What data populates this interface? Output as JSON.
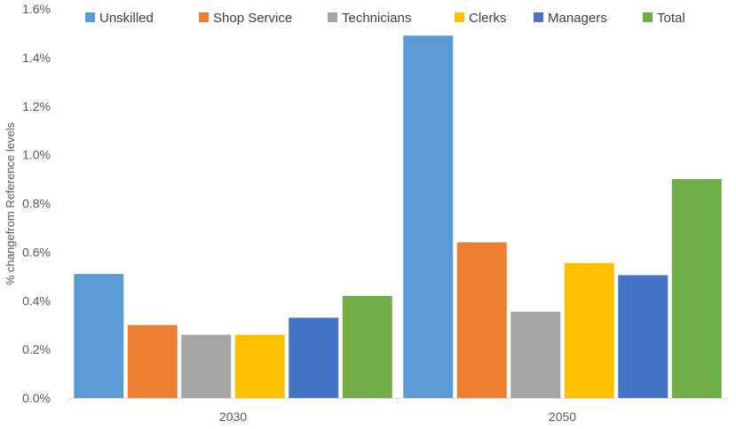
{
  "chart_data": {
    "type": "bar",
    "categories": [
      "2030",
      "2050"
    ],
    "series": [
      {
        "name": "Unskilled",
        "color": "#5B9BD5",
        "values": [
          0.51,
          1.49
        ]
      },
      {
        "name": "Shop Service",
        "color": "#ED7D31",
        "values": [
          0.3,
          0.64
        ]
      },
      {
        "name": "Technicians",
        "color": "#A5A5A5",
        "values": [
          0.26,
          0.355
        ]
      },
      {
        "name": "Clerks",
        "color": "#FFC000",
        "values": [
          0.26,
          0.555
        ]
      },
      {
        "name": "Managers",
        "color": "#4472C4",
        "values": [
          0.33,
          0.505
        ]
      },
      {
        "name": "Total",
        "color": "#70AD47",
        "values": [
          0.42,
          0.9
        ]
      }
    ],
    "ylabel": "% changefrom Reference levels",
    "xlabel": "",
    "ylim": [
      0,
      1.6
    ],
    "yticks": [
      "0.0%",
      "0.2%",
      "0.4%",
      "0.6%",
      "0.8%",
      "1.0%",
      "1.2%",
      "1.4%",
      "1.6%"
    ],
    "grid": false,
    "legend_position": "top"
  }
}
